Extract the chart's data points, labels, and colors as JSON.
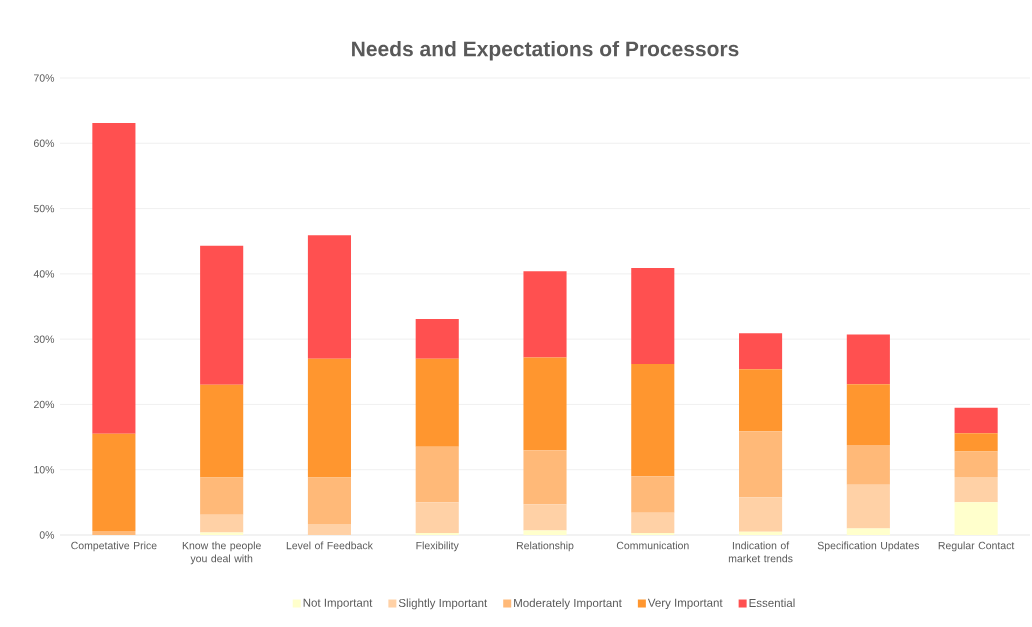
{
  "chart_data": {
    "type": "bar",
    "title": "Needs and Expectations of Processors",
    "categories": [
      "Competative Price",
      "Know the people you deal with",
      "Level of Feedback",
      "Flexibility",
      "Relationship",
      "Communication",
      "Indication of market trends",
      "Specification Updates",
      "Regular Contact"
    ],
    "series": [
      {
        "name": "Not Important",
        "color": "#ffffcc",
        "values": [
          0,
          0.4,
          0,
          0.3,
          0.7,
          0.3,
          0.5,
          1.0,
          5.0
        ]
      },
      {
        "name": "Slightly Important",
        "color": "#ffd1a6",
        "values": [
          0,
          2.7,
          1.7,
          4.7,
          4.0,
          3.1,
          5.3,
          6.7,
          3.9
        ]
      },
      {
        "name": "Moderately Important",
        "color": "#ffb978",
        "values": [
          0.6,
          5.7,
          7.1,
          8.5,
          8.3,
          5.6,
          10.1,
          6.1,
          3.9
        ]
      },
      {
        "name": "Very Important",
        "color": "#ff962f",
        "values": [
          14.9,
          14.2,
          18.2,
          13.5,
          14.2,
          17.2,
          9.5,
          9.3,
          2.8
        ]
      },
      {
        "name": "Essential",
        "color": "#ff5050",
        "values": [
          47.6,
          21.3,
          18.9,
          6.1,
          13.2,
          14.7,
          5.5,
          7.6,
          3.9
        ]
      }
    ],
    "stacked": true,
    "ylim": [
      0,
      70
    ],
    "yticks": [
      {
        "value": 0,
        "label": "0%"
      },
      {
        "value": 10,
        "label": "10%"
      },
      {
        "value": 20,
        "label": "20%"
      },
      {
        "value": 30,
        "label": "30%"
      },
      {
        "value": 40,
        "label": "40%"
      },
      {
        "value": 50,
        "label": "50%"
      },
      {
        "value": 60,
        "label": "60%"
      },
      {
        "value": 70,
        "label": "70%"
      }
    ],
    "grid": "y",
    "legend": "bottom"
  }
}
